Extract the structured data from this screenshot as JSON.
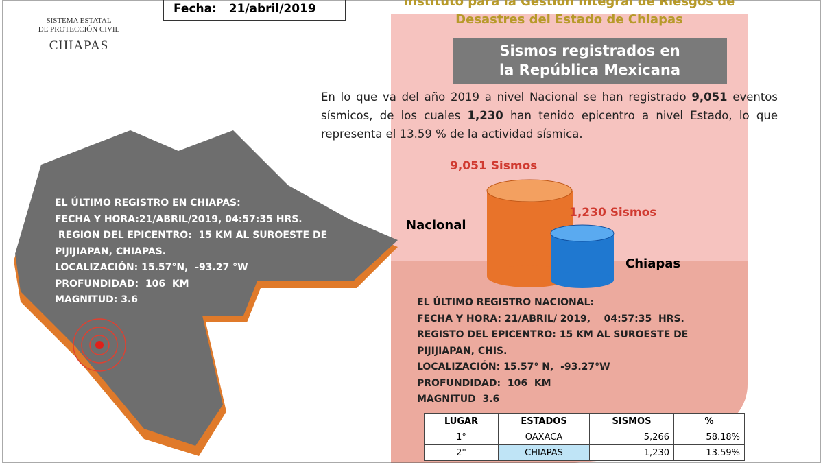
{
  "header": {
    "logo_lines": [
      "SISTEMA ESTATAL",
      "DE PROTECCIÓN CIVIL",
      "CHIAPAS"
    ],
    "date_label": "Fecha:",
    "date_value": "21/abril/2019",
    "institute_lines": [
      "Instituto para la Gestión Integral de Riesgos de",
      "Desastres del Estado de Chiapas"
    ]
  },
  "section_title": [
    "Sismos registrados en",
    "la República Mexicana"
  ],
  "summary": [
    {
      "text": "En lo que va del año 2019 a nivel Nacional se han registrado ",
      "bold": false
    },
    {
      "text": "9,051",
      "bold": true
    },
    {
      "text": " eventos sísmicos, de los cuales ",
      "bold": false
    },
    {
      "text": "1,230",
      "bold": true
    },
    {
      "text": " han tenido epicentro a nivel Estado, lo que representa el 13.59 % de la actividad sísmica.",
      "bold": false
    }
  ],
  "cylinders": {
    "national_count": "9,051 Sismos",
    "national_label": "Nacional",
    "state_count": "1,230 Sismos",
    "state_label": "Chiapas"
  },
  "chiapas_record": [
    "EL ÚLTIMO REGISTRO EN CHIAPAS:",
    "FECHA Y HORA:21/ABRIL/2019, 04:57:35 HRS.",
    " REGION DEL EPICENTRO:  15 KM AL SUROESTE DE",
    "PIJIJIAPAN, CHIAPAS.",
    "LOCALIZACIÓN: 15.57°N,  -93.27 °W",
    "PROFUNDIDAD:  106  KM",
    "MAGNITUD: 3.6"
  ],
  "national_record": [
    "EL ÚLTIMO REGISTRO NACIONAL:",
    "FECHA Y HORA: 21/ABRIL/ 2019,    04:57:35  HRS.",
    "REGISTO DEL EPICENTRO: 15 KM AL SUROESTE DE",
    "PIJIJIAPAN, CHIS.",
    "LOCALIZACIÓN: 15.57° N,  -93.27°W",
    "PROFUNDIDAD:  106  KM",
    "MAGNITUD  3.6"
  ],
  "table": {
    "columns": [
      "LUGAR",
      "ESTADOS",
      "SISMOS",
      "%"
    ],
    "rows": [
      [
        "1°",
        "OAXACA",
        "5,266",
        "58.18%"
      ],
      [
        "2°",
        "CHIAPAS",
        "1,230",
        "13.59%"
      ]
    ]
  }
}
